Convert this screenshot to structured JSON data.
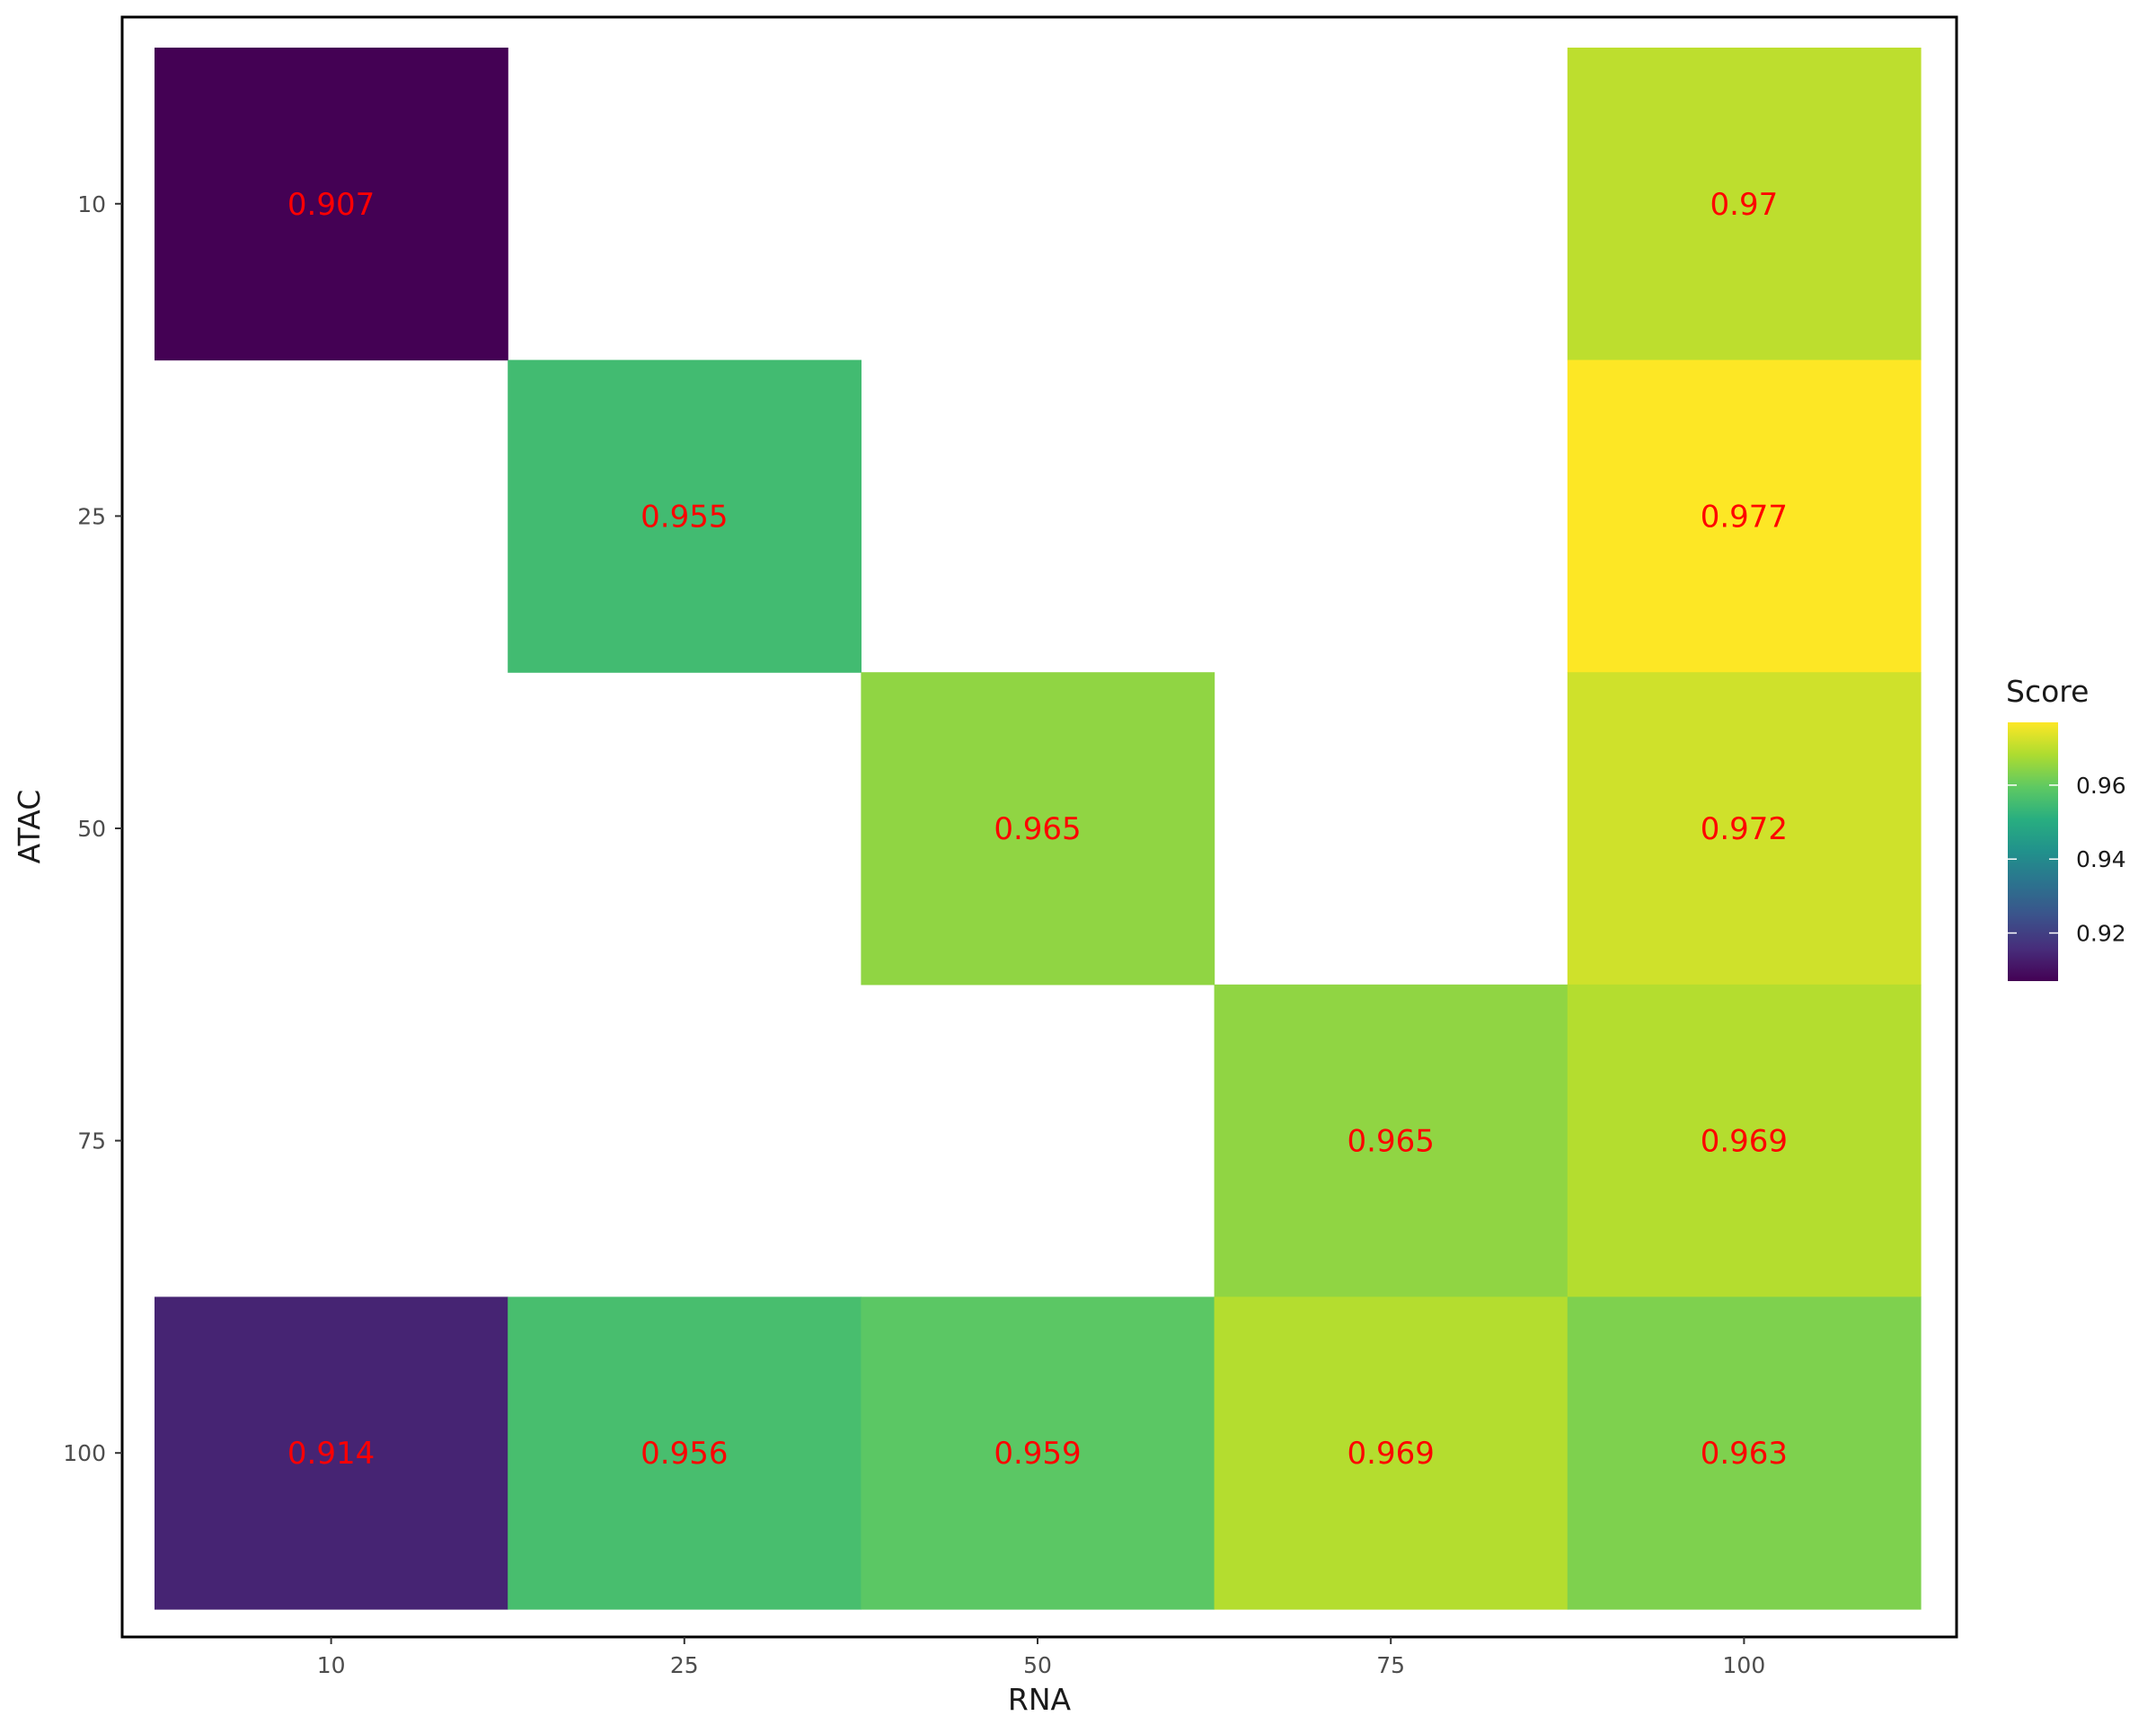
{
  "chart_data": {
    "type": "heatmap",
    "xlabel": "RNA",
    "ylabel": "ATAC",
    "x_categories": [
      "10",
      "25",
      "50",
      "75",
      "100"
    ],
    "y_categories": [
      "10",
      "25",
      "50",
      "75",
      "100"
    ],
    "cells": [
      {
        "x": "10",
        "y": "10",
        "value": 0.907,
        "label": "0.907"
      },
      {
        "x": "100",
        "y": "10",
        "value": 0.97,
        "label": "0.97"
      },
      {
        "x": "25",
        "y": "25",
        "value": 0.955,
        "label": "0.955"
      },
      {
        "x": "100",
        "y": "25",
        "value": 0.977,
        "label": "0.977"
      },
      {
        "x": "50",
        "y": "50",
        "value": 0.965,
        "label": "0.965"
      },
      {
        "x": "100",
        "y": "50",
        "value": 0.972,
        "label": "0.972"
      },
      {
        "x": "75",
        "y": "75",
        "value": 0.965,
        "label": "0.965"
      },
      {
        "x": "100",
        "y": "75",
        "value": 0.969,
        "label": "0.969"
      },
      {
        "x": "10",
        "y": "100",
        "value": 0.914,
        "label": "0.914"
      },
      {
        "x": "25",
        "y": "100",
        "value": 0.956,
        "label": "0.956"
      },
      {
        "x": "50",
        "y": "100",
        "value": 0.959,
        "label": "0.959"
      },
      {
        "x": "75",
        "y": "100",
        "value": 0.969,
        "label": "0.969"
      },
      {
        "x": "100",
        "y": "100",
        "value": 0.963,
        "label": "0.963"
      }
    ],
    "legend": {
      "title": "Score",
      "placement": "right",
      "range": [
        0.907,
        0.977
      ],
      "ticks": [
        0.92,
        0.94,
        0.96
      ],
      "tick_labels": [
        "0.92",
        "0.94",
        "0.96"
      ],
      "colormap": "viridis"
    },
    "cell_label_color": "#ff0000",
    "grid": false
  }
}
